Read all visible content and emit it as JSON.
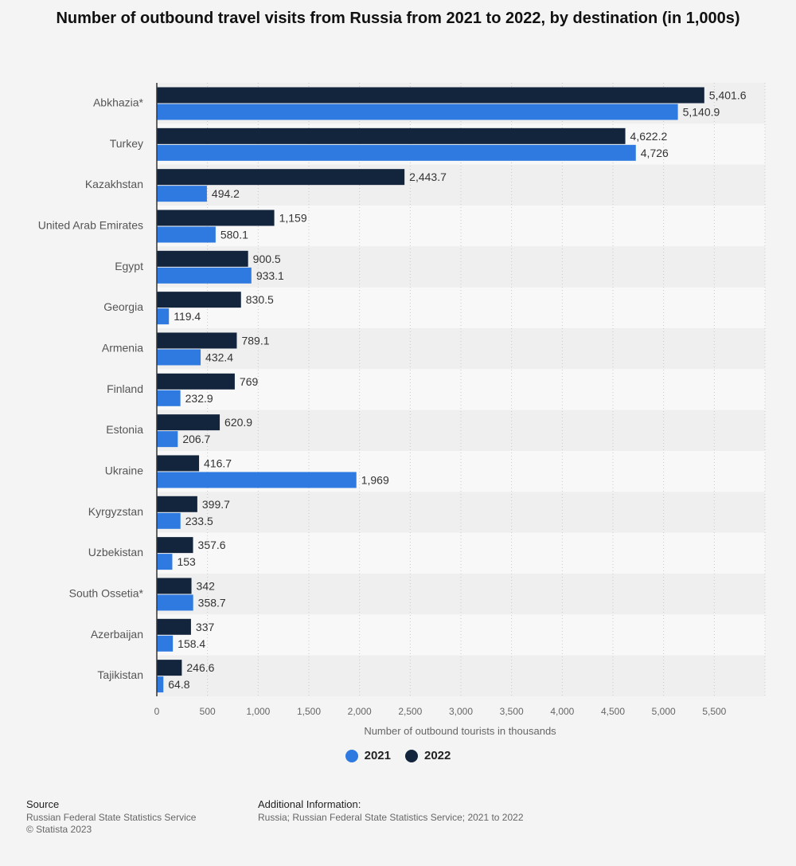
{
  "title": "Number of outbound travel visits from Russia from 2021 to 2022, by destination (in 1,000s)",
  "colors": {
    "2021": "#2e7ae0",
    "2022": "#13253d"
  },
  "chart_data": {
    "type": "bar",
    "orientation": "horizontal",
    "categories": [
      "Abkhazia*",
      "Turkey",
      "Kazakhstan",
      "United Arab Emirates",
      "Egypt",
      "Georgia",
      "Armenia",
      "Finland",
      "Estonia",
      "Ukraine",
      "Kyrgyzstan",
      "Uzbekistan",
      "South Ossetia*",
      "Azerbaijan",
      "Tajikistan"
    ],
    "series": [
      {
        "name": "2022",
        "values": [
          5401.6,
          4622.2,
          2443.7,
          1159,
          900.5,
          830.5,
          789.1,
          769,
          620.9,
          416.7,
          399.7,
          357.6,
          342,
          337,
          246.6
        ],
        "labels": [
          "5,401.6",
          "4,622.2",
          "2,443.7",
          "1,159",
          "900.5",
          "830.5",
          "789.1",
          "769",
          "620.9",
          "416.7",
          "399.7",
          "357.6",
          "342",
          "337",
          "246.6"
        ]
      },
      {
        "name": "2021",
        "values": [
          5140.9,
          4726,
          494.2,
          580.1,
          933.1,
          119.4,
          432.4,
          232.9,
          206.7,
          1969,
          233.5,
          153,
          358.7,
          158.4,
          64.8
        ],
        "labels": [
          "5,140.9",
          "4,726",
          "494.2",
          "580.1",
          "933.1",
          "119.4",
          "432.4",
          "232.9",
          "206.7",
          "1,969",
          "233.5",
          "153",
          "358.7",
          "158.4",
          "64.8"
        ]
      }
    ],
    "xlim": [
      0,
      6000
    ],
    "xticks": [
      "0",
      "500",
      "1,000",
      "1,500",
      "2,000",
      "2,500",
      "3,000",
      "3,500",
      "4,000",
      "4,500",
      "5,000",
      "5,500"
    ],
    "xlabel": "Number of outbound tourists in thousands",
    "ylabel": "",
    "grid": true,
    "legend_position": "bottom"
  },
  "legend": {
    "label_2021": "2021",
    "label_2022": "2022"
  },
  "footer": {
    "source_heading": "Source",
    "source_lines": [
      "Russian Federal State Statistics Service",
      "© Statista 2023"
    ],
    "additional_heading": "Additional Information:",
    "additional_lines": [
      "Russia; Russian Federal State Statistics Service; 2021 to 2022"
    ]
  }
}
